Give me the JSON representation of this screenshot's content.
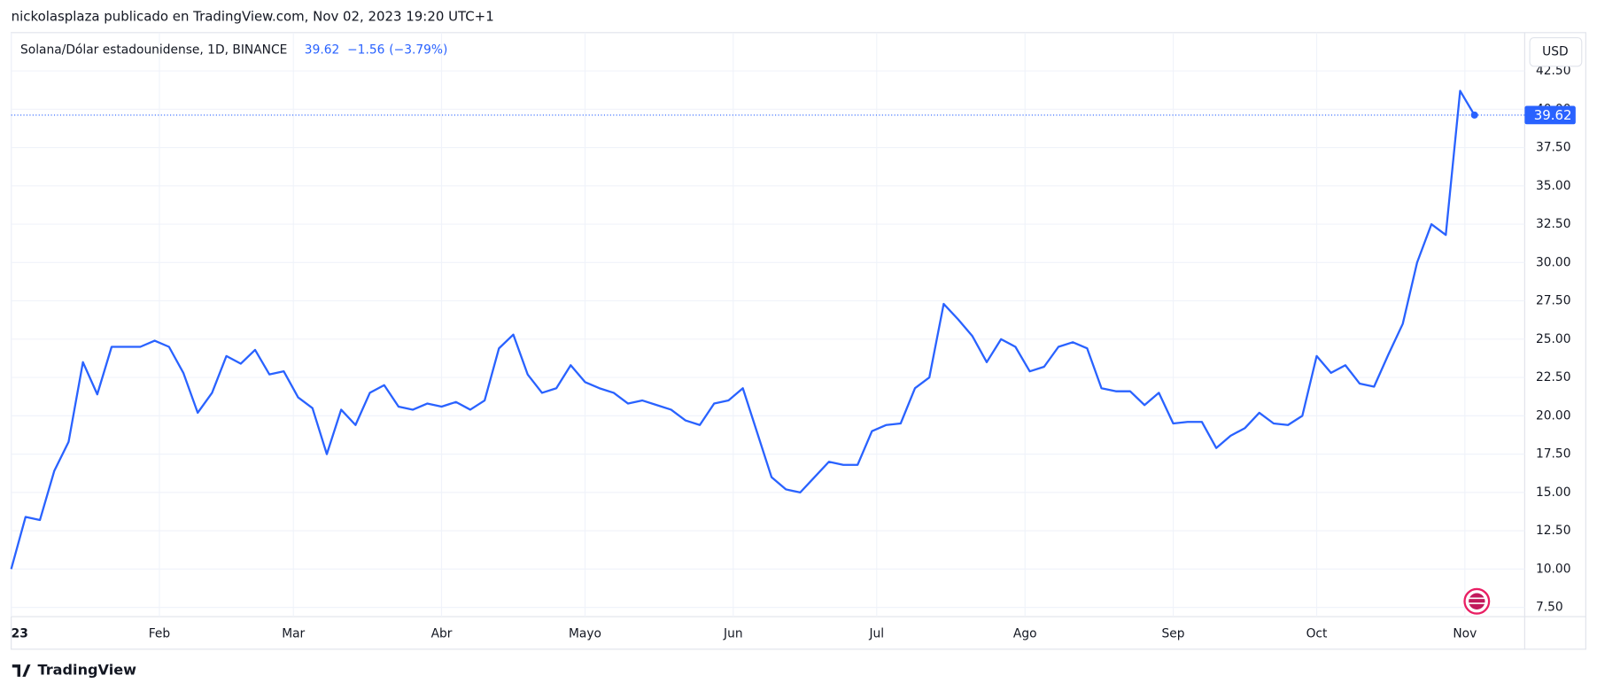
{
  "header": {
    "attribution": "nickolasplaza publicado en TradingView.com, Nov 02, 2023 19:20 UTC+1",
    "brand": "TradingView",
    "currency_button": "USD"
  },
  "chart_data": {
    "type": "line",
    "symbol": "Solana/Dólar estadounidense, 1D, BINANCE",
    "last_price": "39.62",
    "change": "−1.56",
    "change_percent": "(−3.79%)",
    "series": [
      {
        "name": "Solana/Dólar estadounidense",
        "color": "#2962ff",
        "values": [
          10.0,
          13.4,
          13.2,
          16.4,
          18.3,
          23.5,
          21.4,
          24.5,
          24.5,
          24.5,
          24.9,
          24.5,
          22.8,
          20.2,
          21.5,
          23.9,
          23.4,
          24.3,
          22.7,
          22.9,
          21.2,
          20.5,
          17.5,
          20.4,
          19.4,
          21.5,
          22.0,
          20.6,
          20.4,
          20.8,
          20.6,
          20.9,
          20.4,
          21.0,
          24.4,
          25.3,
          22.7,
          21.5,
          21.8,
          23.3,
          22.2,
          21.8,
          21.5,
          20.8,
          21.0,
          20.7,
          20.4,
          19.7,
          19.4,
          20.8,
          21.0,
          21.8,
          18.9,
          16.0,
          15.2,
          15.0,
          16.0,
          17.0,
          16.8,
          16.8,
          19.0,
          19.4,
          19.5,
          21.8,
          22.5,
          27.3,
          26.3,
          25.2,
          23.5,
          25.0,
          24.5,
          22.9,
          23.2,
          24.5,
          24.8,
          24.4,
          21.8,
          21.6,
          21.6,
          20.7,
          21.5,
          19.5,
          19.6,
          19.6,
          17.9,
          18.7,
          19.2,
          20.2,
          19.5,
          19.4,
          20.0,
          23.9,
          22.8,
          23.3,
          22.1,
          21.9,
          24.0,
          26.0,
          30.0,
          32.5,
          31.8,
          41.2,
          39.62
        ]
      }
    ],
    "xlim": [
      0,
      105.5
    ],
    "xticks": [
      {
        "value": 0,
        "label": "23"
      },
      {
        "value": 10.33,
        "label": "Feb"
      },
      {
        "value": 19.67,
        "label": "Mar"
      },
      {
        "value": 30,
        "label": "Abr"
      },
      {
        "value": 40,
        "label": "Mayo"
      },
      {
        "value": 50.33,
        "label": "Jun"
      },
      {
        "value": 60.33,
        "label": "Jul"
      },
      {
        "value": 70.67,
        "label": "Ago"
      },
      {
        "value": 81,
        "label": "Sep"
      },
      {
        "value": 91,
        "label": "Oct"
      },
      {
        "value": 101.33,
        "label": "Nov"
      }
    ],
    "ylim": [
      6.9,
      45
    ],
    "yticks": [
      {
        "value": 7.5,
        "label": "7.50"
      },
      {
        "value": 10,
        "label": "10.00"
      },
      {
        "value": 12.5,
        "label": "12.50"
      },
      {
        "value": 15,
        "label": "15.00"
      },
      {
        "value": 17.5,
        "label": "17.50"
      },
      {
        "value": 20,
        "label": "20.00"
      },
      {
        "value": 22.5,
        "label": "22.50"
      },
      {
        "value": 25,
        "label": "25.00"
      },
      {
        "value": 27.5,
        "label": "27.50"
      },
      {
        "value": 30,
        "label": "30.00"
      },
      {
        "value": 32.5,
        "label": "32.50"
      },
      {
        "value": 35,
        "label": "35.00"
      },
      {
        "value": 37.5,
        "label": "37.50"
      },
      {
        "value": 40,
        "label": "40.00"
      },
      {
        "value": 42.5,
        "label": "42.50"
      }
    ],
    "grid": true
  }
}
